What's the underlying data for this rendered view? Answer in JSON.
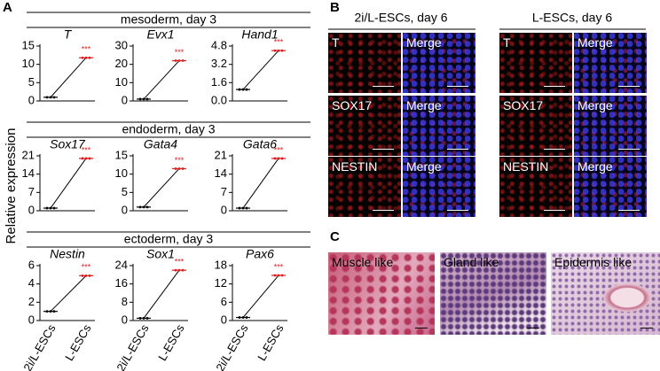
{
  "panel_labels": [
    "A",
    "B",
    "C"
  ],
  "panel_a": {
    "y_label": "Relative expression",
    "group_titles": [
      "mesoderm, day 3",
      "endoderm, day 3",
      "ectoderm, day 3"
    ]
  },
  "chart_data": [
    {
      "type": "line",
      "title": "T",
      "values": [
        1,
        11.8
      ],
      "annotation": "***",
      "ylim": [
        0,
        15
      ],
      "yticks": [
        0,
        5,
        10,
        15
      ],
      "point_colors": [
        "#000000",
        "#e31a1c"
      ]
    },
    {
      "type": "line",
      "title": "Evx1",
      "values": [
        1,
        22
      ],
      "annotation": "***",
      "ylim": [
        0,
        30
      ],
      "yticks": [
        0,
        10,
        20,
        30
      ],
      "point_colors": [
        "#000000",
        "#e31a1c"
      ]
    },
    {
      "type": "line",
      "title": "Hand1",
      "values": [
        1,
        4.4
      ],
      "annotation": "***",
      "ylim": [
        0,
        4.8
      ],
      "yticks": [
        {
          "value": 0,
          "label": "0.0"
        },
        1.6,
        3.2,
        4.8
      ],
      "point_colors": [
        "#000000",
        "#e31a1c"
      ]
    },
    {
      "type": "line",
      "title": "Sox17",
      "values": [
        1,
        20
      ],
      "annotation": "***",
      "ylim": [
        0,
        21
      ],
      "yticks": [
        0,
        7,
        14,
        21
      ],
      "point_colors": [
        "#000000",
        "#e31a1c"
      ]
    },
    {
      "type": "line",
      "title": "Gata4",
      "values": [
        1,
        11.5
      ],
      "annotation": "***",
      "ylim": [
        0,
        15
      ],
      "yticks": [
        0,
        5,
        10,
        15
      ],
      "point_colors": [
        "#000000",
        "#e31a1c"
      ]
    },
    {
      "type": "line",
      "title": "Gata6",
      "values": [
        1,
        20
      ],
      "annotation": "***",
      "ylim": [
        0,
        21
      ],
      "yticks": [
        0,
        7,
        14,
        21
      ],
      "point_colors": [
        "#000000",
        "#e31a1c"
      ]
    },
    {
      "type": "line",
      "title": "Nestin",
      "categories": [
        "2i/L-ESCs",
        "L-ESCs"
      ],
      "values": [
        1,
        4.9
      ],
      "annotation": "***",
      "ylim": [
        0,
        6
      ],
      "yticks": [
        0,
        2,
        4,
        6
      ],
      "point_colors": [
        "#000000",
        "#e31a1c"
      ]
    },
    {
      "type": "line",
      "title": "Sox1",
      "categories": [
        "2i/L-ESCs",
        "L-ESCs"
      ],
      "values": [
        1,
        22
      ],
      "annotation": "***",
      "ylim": [
        0,
        24
      ],
      "yticks": [
        0,
        8,
        16,
        24
      ],
      "point_colors": [
        "#000000",
        "#e31a1c"
      ]
    },
    {
      "type": "line",
      "title": "Pax6",
      "categories": [
        "2i/L-ESCs",
        "L-ESCs"
      ],
      "values": [
        1,
        14.8
      ],
      "annotation": "***",
      "ylim": [
        0,
        18
      ],
      "yticks": [
        0,
        6,
        12,
        18
      ],
      "point_colors": [
        "#000000",
        "#e31a1c"
      ]
    }
  ],
  "panel_b": {
    "headers": [
      "2i/L-ESCs, day 6",
      "L-ESCs, day 6"
    ],
    "rows": [
      [
        "T",
        "Merge"
      ],
      [
        "SOX17",
        "Merge"
      ],
      [
        "NESTIN",
        "Merge"
      ]
    ]
  },
  "panel_c": {
    "labels": [
      "Muscle like",
      "Gland like",
      "Epidermis like"
    ]
  }
}
